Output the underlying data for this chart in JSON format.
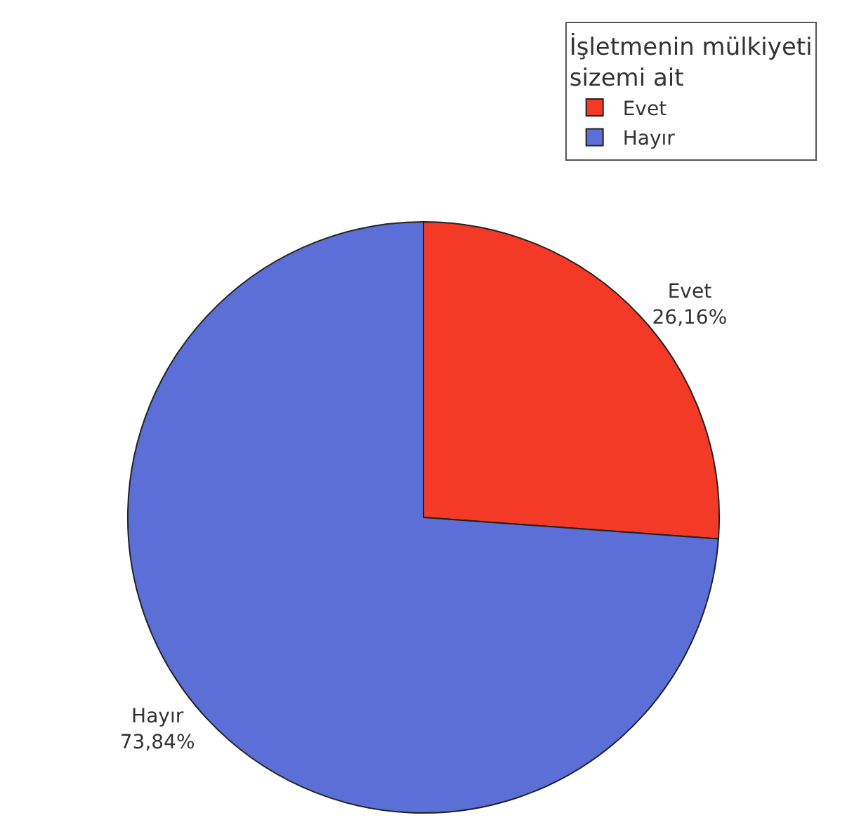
{
  "chart_data": {
    "type": "pie",
    "legend_title": "İşletmenin mülkiyeti sizemi ait",
    "categories": [
      "Evet",
      "Hayır"
    ],
    "values": [
      26.16,
      73.84
    ],
    "colors": [
      "#f23a26",
      "#5b6fd6"
    ],
    "value_labels": [
      "26,16%",
      "73,84%"
    ],
    "legend": "top right"
  }
}
